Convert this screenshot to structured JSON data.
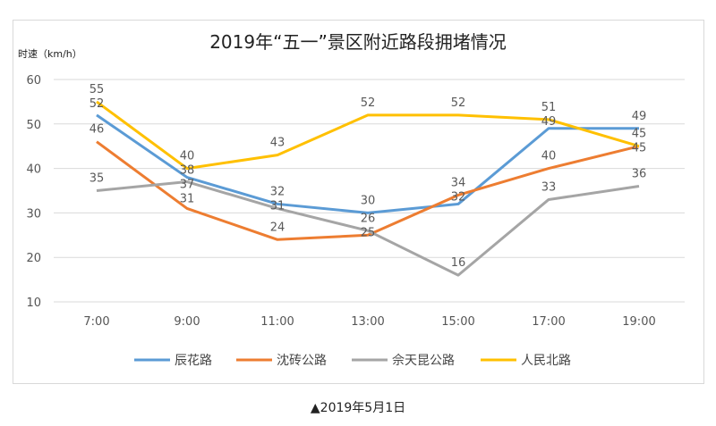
{
  "chart_data": {
    "type": "line",
    "title": "2019年“五一”景区附近路段拥堵情况",
    "ylabel": "时速（km/h）",
    "xlabel": "",
    "ylim": [
      10,
      60
    ],
    "yticks": [
      10,
      20,
      30,
      40,
      50,
      60
    ],
    "grid": true,
    "legend": "bottom",
    "categories": [
      "7:00",
      "9:00",
      "11:00",
      "13:00",
      "15:00",
      "17:00",
      "19:00"
    ],
    "series": [
      {
        "name": "辰花路",
        "color": "#5b9bd5",
        "values": [
          52,
          38,
          32,
          30,
          32,
          49,
          49
        ]
      },
      {
        "name": "沈砖公路",
        "color": "#ed7d31",
        "values": [
          46,
          31,
          24,
          25,
          34,
          40,
          45
        ]
      },
      {
        "name": "佘天昆公路",
        "color": "#a5a5a5",
        "values": [
          35,
          37,
          31,
          26,
          16,
          33,
          36
        ]
      },
      {
        "name": "人民北路",
        "color": "#ffc000",
        "values": [
          55,
          40,
          43,
          52,
          52,
          51,
          45
        ]
      }
    ]
  },
  "caption": "▲2019年5月1日"
}
